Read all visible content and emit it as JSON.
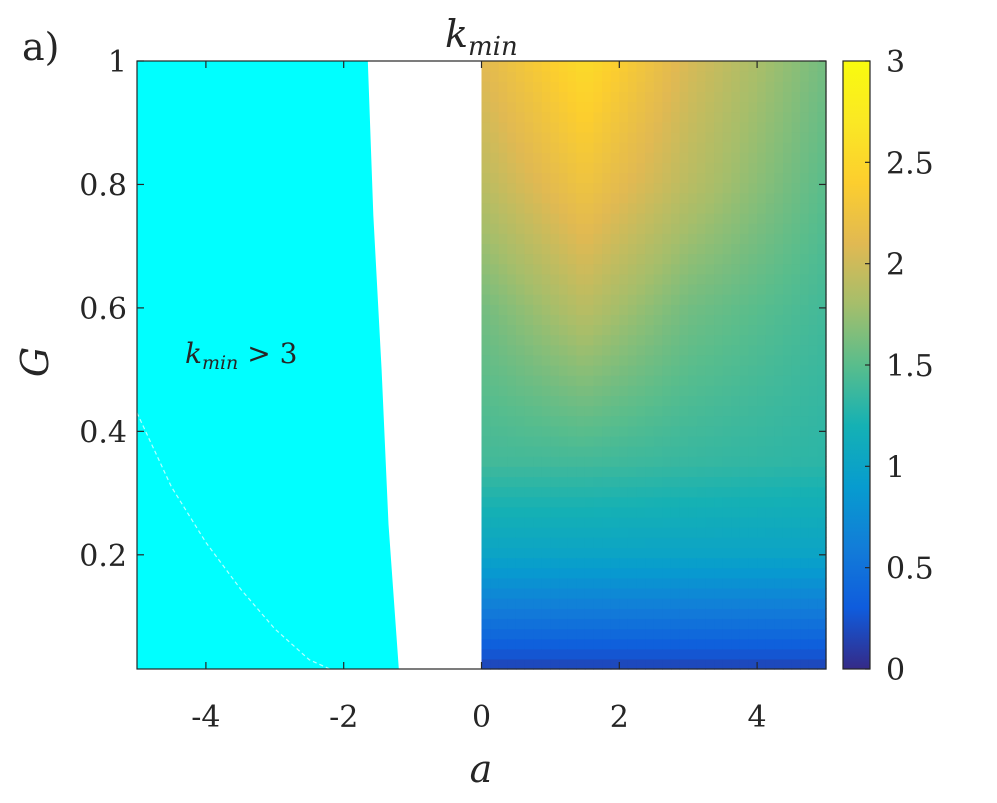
{
  "panel_label": "a)",
  "chart_data": {
    "type": "heatmap",
    "title": "k_min",
    "title_base": "k",
    "title_sub": "min",
    "xlabel": "a",
    "ylabel": "G",
    "xlim": [
      -5,
      5
    ],
    "ylim": [
      0.015,
      1
    ],
    "x_ticks": [
      -4,
      -2,
      0,
      2,
      4
    ],
    "x_tick_labels": [
      "-4",
      "-2",
      "0",
      "2",
      "4"
    ],
    "y_ticks": [
      0.2,
      0.4,
      0.6,
      0.8,
      1
    ],
    "y_tick_labels": [
      "0.2",
      "0.4",
      "0.6",
      "0.8",
      "1"
    ],
    "colorbar": {
      "min": 0,
      "max": 3,
      "ticks": [
        0,
        0.5,
        1,
        1.5,
        2,
        2.5,
        3
      ],
      "tick_labels": [
        "0",
        "0.5",
        "1",
        "1.5",
        "2",
        "2.5",
        "3"
      ],
      "colormap": "parula"
    },
    "regions": [
      {
        "name": "k_min > 3",
        "color": "#00FFFF",
        "x_range": [
          -5,
          -1.2
        ],
        "right_boundary_at_G": [
          [
            0.015,
            -1.2
          ],
          [
            0.25,
            -1.35
          ],
          [
            0.5,
            -1.45
          ],
          [
            0.75,
            -1.57
          ],
          [
            1.0,
            -1.65
          ]
        ]
      },
      {
        "name": "undefined (white)",
        "color": "#FFFFFF",
        "x_range": [
          -1.65,
          0
        ]
      },
      {
        "name": "lower-left colored wedge",
        "colored_below_G": [
          [
            -5,
            0.43
          ],
          [
            -4.5,
            0.31
          ],
          [
            -4,
            0.22
          ],
          [
            -3.5,
            0.145
          ],
          [
            -3,
            0.08
          ],
          [
            -2.5,
            0.03
          ],
          [
            -2.2,
            0.015
          ]
        ],
        "peak_value": 2.7
      }
    ],
    "value_grid_a_ge_0": {
      "a": [
        0,
        1.5,
        3,
        5
      ],
      "G": [
        0.015,
        0.2,
        0.35,
        0.6,
        0.8,
        1.0
      ],
      "values": [
        [
          0.15,
          0.15,
          0.15,
          0.15
        ],
        [
          1.0,
          1.0,
          1.0,
          1.0
        ],
        [
          1.4,
          1.4,
          1.35,
          1.3
        ],
        [
          1.6,
          1.9,
          1.6,
          1.4
        ],
        [
          1.9,
          2.25,
          1.9,
          1.5
        ],
        [
          2.1,
          2.55,
          2.05,
          1.6
        ]
      ]
    },
    "annotation": {
      "text_base": "k",
      "text_sub": "min",
      "text_rest": " > 3",
      "at": [
        -4.5,
        0.56
      ]
    }
  }
}
